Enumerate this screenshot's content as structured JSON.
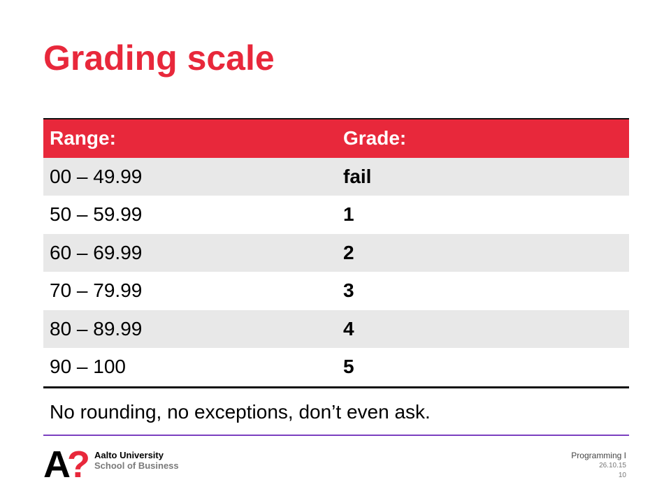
{
  "slide": {
    "title": "Grading scale",
    "note": "No rounding, no exceptions, don’t even ask."
  },
  "table": {
    "headers": [
      "Range:",
      "Grade:"
    ],
    "rows": [
      {
        "range": "00 – 49.99",
        "grade": "fail"
      },
      {
        "range": "50 – 59.99",
        "grade": "1"
      },
      {
        "range": "60 – 69.99",
        "grade": "2"
      },
      {
        "range": "70 – 79.99",
        "grade": "3"
      },
      {
        "range": "80 – 89.99",
        "grade": "4"
      },
      {
        "range": "90 – 100",
        "grade": "5"
      }
    ]
  },
  "footer": {
    "logo_mark": "A?",
    "university": "Aalto University",
    "school": "School of Business",
    "course": "Programming I",
    "date": "26.10.15",
    "page": "10"
  },
  "colors": {
    "accent": "#e8283b",
    "divider": "#7b3fc0",
    "row_shade": "#e8e8e8"
  }
}
